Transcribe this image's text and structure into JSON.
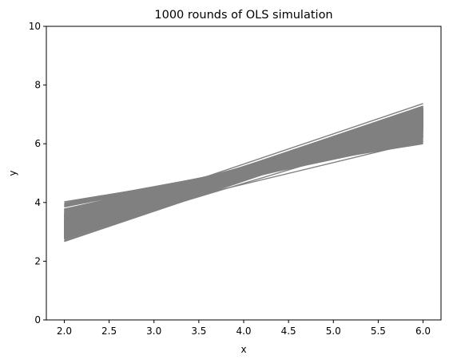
{
  "chart_data": {
    "type": "line",
    "title": "1000 rounds of OLS simulation",
    "xlabel": "x",
    "ylabel": "y",
    "xlim": [
      1.8,
      6.2
    ],
    "ylim": [
      0,
      10
    ],
    "xticks": [
      2.0,
      2.5,
      3.0,
      3.5,
      4.0,
      4.5,
      5.0,
      5.5,
      6.0
    ],
    "xtick_labels": [
      "2.0",
      "2.5",
      "3.0",
      "3.5",
      "4.0",
      "4.5",
      "5.0",
      "5.5",
      "6.0"
    ],
    "yticks": [
      0,
      2,
      4,
      6,
      8,
      10
    ],
    "ytick_labels": [
      "0",
      "2",
      "4",
      "6",
      "8",
      "10"
    ],
    "grid": false,
    "line_color": "#808080",
    "series_count": 1000,
    "line_x_range": [
      2.0,
      6.0
    ],
    "envelope": {
      "y_at_x2": [
        2.0,
        4.02
      ],
      "y_at_x6": [
        5.95,
        8.12
      ],
      "central_line": {
        "intercept": 1.0,
        "slope": 1.0
      }
    }
  }
}
